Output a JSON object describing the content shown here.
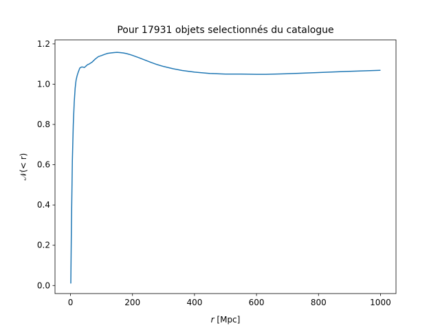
{
  "chart_data": {
    "type": "line",
    "title": "Pour 17931 objets selectionnés du catalogue",
    "xlabel_italic": "r",
    "xlabel_unit": " [Mpc]",
    "ylabel": "𝒩(< r)",
    "xlim": [
      -50,
      1050
    ],
    "ylim": [
      -0.04,
      1.22
    ],
    "x_ticks": [
      0,
      200,
      400,
      600,
      800,
      1000
    ],
    "x_tick_labels": [
      "0",
      "200",
      "400",
      "600",
      "800",
      "1000"
    ],
    "y_ticks": [
      0.0,
      0.2,
      0.4,
      0.6,
      0.8,
      1.0,
      1.2
    ],
    "y_tick_labels": [
      "0.0",
      "0.2",
      "0.4",
      "0.6",
      "0.8",
      "1.0",
      "1.2"
    ],
    "grid": false,
    "color": "#1f77b4",
    "series": [
      {
        "x": [
          1,
          3,
          6,
          9,
          12,
          15,
          18,
          21,
          25,
          30,
          35,
          40,
          45,
          50,
          55,
          60,
          70,
          80,
          90,
          100,
          110,
          120,
          130,
          140,
          150,
          160,
          170,
          180,
          190,
          200,
          220,
          240,
          260,
          280,
          300,
          330,
          360,
          400,
          450,
          500,
          550,
          600,
          630,
          700,
          800,
          900,
          1000
        ],
        "y": [
          0.01,
          0.3,
          0.62,
          0.8,
          0.91,
          0.98,
          1.02,
          1.04,
          1.06,
          1.08,
          1.085,
          1.085,
          1.083,
          1.09,
          1.097,
          1.1,
          1.11,
          1.125,
          1.137,
          1.142,
          1.148,
          1.153,
          1.155,
          1.157,
          1.158,
          1.157,
          1.155,
          1.152,
          1.148,
          1.143,
          1.132,
          1.12,
          1.108,
          1.097,
          1.088,
          1.077,
          1.068,
          1.06,
          1.053,
          1.05,
          1.05,
          1.049,
          1.049,
          1.052,
          1.058,
          1.064,
          1.069
        ]
      }
    ]
  }
}
